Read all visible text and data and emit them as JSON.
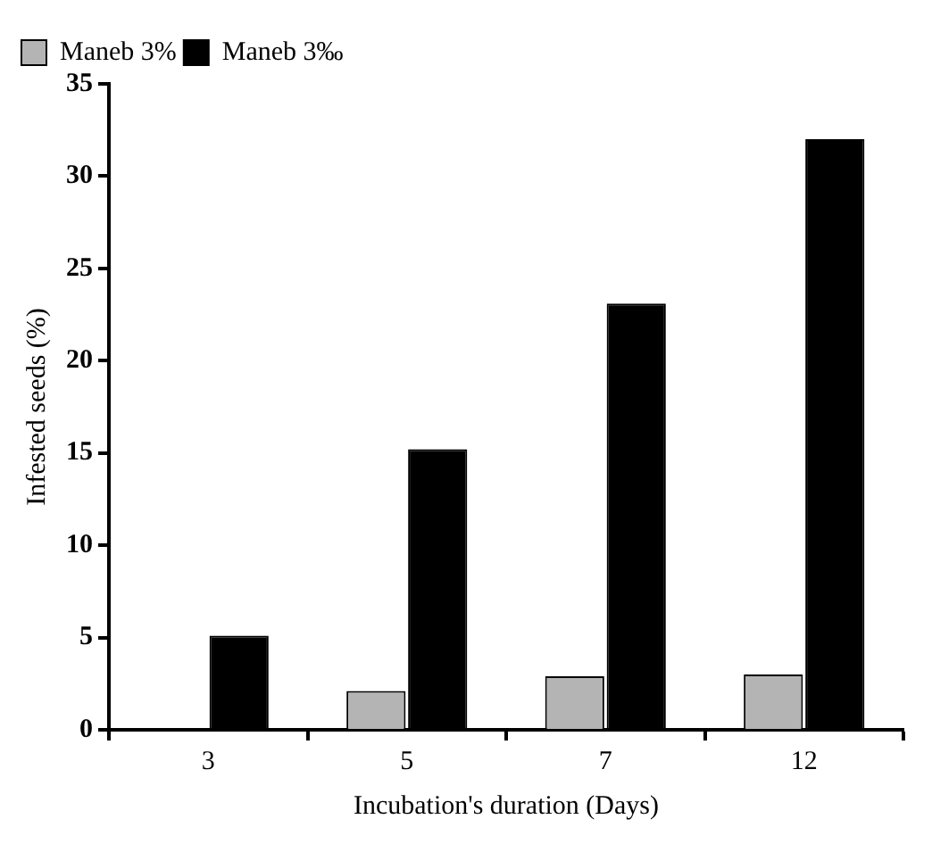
{
  "chart_data": {
    "type": "bar",
    "xlabel": "Incubation's duration (Days)",
    "ylabel": "Infested seeds (%)",
    "categories": [
      "3",
      "5",
      "7",
      "12"
    ],
    "series": [
      {
        "name": "Maneb 3%",
        "color": "#b4b4b4",
        "values": [
          0,
          2.1,
          2.9,
          3.0
        ]
      },
      {
        "name": "Maneb 3‰",
        "color": "#000000",
        "values": [
          5.1,
          15.2,
          23.1,
          32.0
        ]
      }
    ],
    "ylim": [
      0,
      35
    ],
    "yticks": [
      0,
      5,
      10,
      15,
      20,
      25,
      30,
      35
    ],
    "grid": false,
    "legend": "top left"
  }
}
